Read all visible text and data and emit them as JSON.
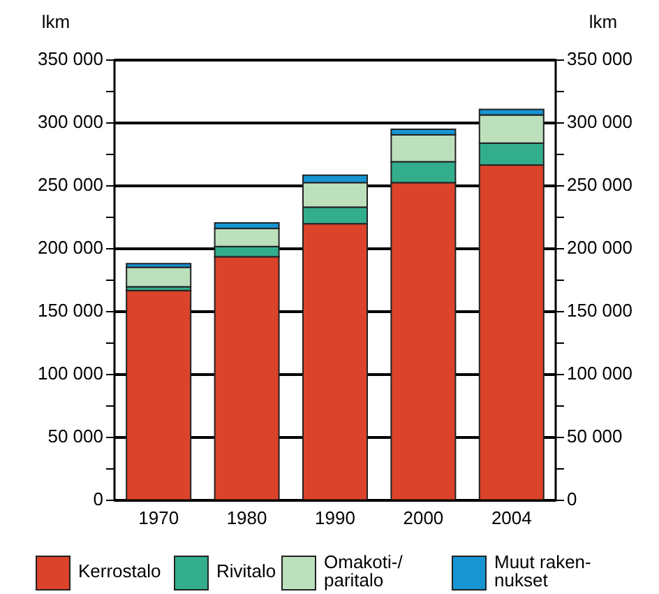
{
  "chart_data": {
    "type": "bar",
    "stacked": true,
    "ylabel": "lkm",
    "y2label": "lkm",
    "categories": [
      "1970",
      "1980",
      "1990",
      "2000",
      "2004"
    ],
    "series": [
      {
        "name": "Kerrostalo",
        "color": "#db432b",
        "values": [
          166800,
          193700,
          219900,
          252600,
          266600
        ]
      },
      {
        "name": "Rivitalo",
        "color": "#33ae8d",
        "values": [
          3000,
          8100,
          13200,
          16600,
          17400
        ]
      },
      {
        "name": "Omakoti-/\nparitalo",
        "color": "#bce0bc",
        "values": [
          15500,
          14400,
          19500,
          21400,
          22400
        ]
      },
      {
        "name": "Muut raken-\nnukset",
        "color": "#1795d3",
        "values": [
          2900,
          4400,
          5900,
          4400,
          4400
        ]
      }
    ],
    "ylim": [
      0,
      350000
    ],
    "yticks": [
      0,
      {
        "value": 25000,
        "label": null
      },
      {
        "value": 50000,
        "label": "50 000"
      },
      {
        "value": 75000,
        "label": null
      },
      {
        "value": 100000,
        "label": "100 000"
      },
      {
        "value": 125000,
        "label": null
      },
      {
        "value": 150000,
        "label": "150 000"
      },
      {
        "value": 175000,
        "label": null
      },
      {
        "value": 200000,
        "label": "200 000"
      },
      {
        "value": 225000,
        "label": null
      },
      {
        "value": 250000,
        "label": "250 000"
      },
      {
        "value": 275000,
        "label": null
      },
      {
        "value": 300000,
        "label": "300 000"
      },
      {
        "value": 325000,
        "label": null
      },
      {
        "value": 350000,
        "label": "350 000"
      }
    ],
    "y2lim": [
      0,
      350000
    ],
    "y2ticks": [
      0,
      {
        "value": 25000,
        "label": null
      },
      {
        "value": 50000,
        "label": "50 000"
      },
      {
        "value": 75000,
        "label": null
      },
      {
        "value": 100000,
        "label": "100 000"
      },
      {
        "value": 125000,
        "label": null
      },
      {
        "value": 150000,
        "label": "150 000"
      },
      {
        "value": 175000,
        "label": null
      },
      {
        "value": 200000,
        "label": "200 000"
      },
      {
        "value": 225000,
        "label": null
      },
      {
        "value": 250000,
        "label": "250 000"
      },
      {
        "value": 275000,
        "label": null
      },
      {
        "value": 300000,
        "label": "300 000"
      },
      {
        "value": 325000,
        "label": null
      },
      {
        "value": 350000,
        "label": "350 000"
      }
    ],
    "grid": "y",
    "legend": "bottom"
  }
}
